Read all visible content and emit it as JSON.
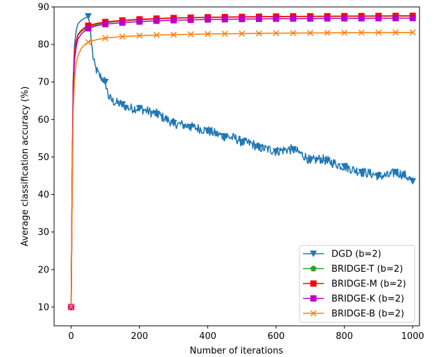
{
  "chart_data": {
    "type": "line",
    "title": "",
    "xlabel": "Number of iterations",
    "ylabel": "Average classification accuracy (%)",
    "xlim": [
      -50,
      1020
    ],
    "ylim": [
      5,
      90
    ],
    "xticks": [
      0,
      200,
      400,
      600,
      800,
      1000
    ],
    "yticks": [
      10,
      20,
      30,
      40,
      50,
      60,
      70,
      80,
      90
    ],
    "grid": false,
    "legend_position": "lower-right",
    "series": [
      {
        "name": "DGD (b=2)",
        "color": "#1f77b4",
        "marker": "triangle-down",
        "x": [
          0,
          3,
          6,
          10,
          15,
          20,
          30,
          40,
          50,
          55,
          60,
          65,
          70,
          80,
          90,
          100,
          110,
          120,
          130,
          150,
          170,
          200,
          230,
          250,
          280,
          300,
          330,
          350,
          380,
          400,
          430,
          450,
          480,
          500,
          530,
          550,
          580,
          600,
          630,
          650,
          680,
          700,
          730,
          750,
          780,
          800,
          830,
          850,
          880,
          900,
          930,
          950,
          980,
          1000
        ],
        "y": [
          10,
          45,
          70,
          80,
          84,
          85.5,
          86.5,
          87,
          87.5,
          85,
          80,
          76,
          74,
          72,
          71,
          70,
          66,
          65,
          64.5,
          64,
          63,
          63,
          62,
          61.5,
          60,
          59,
          58.5,
          58,
          57.5,
          57,
          56,
          55.5,
          55,
          54,
          53.5,
          52.5,
          52,
          51.5,
          52,
          52,
          50.5,
          49,
          49.5,
          49,
          48,
          47.5,
          46.5,
          46,
          45.5,
          45,
          45,
          46,
          45,
          43.5
        ],
        "marker_x": [
          0,
          50,
          100,
          150,
          200,
          250,
          300,
          350,
          400,
          450,
          500,
          550,
          600,
          650,
          700,
          750,
          800,
          850,
          900,
          950,
          1000
        ]
      },
      {
        "name": "BRIDGE-T (b=2)",
        "color": "#2ca02c",
        "marker": "pentagon",
        "x": [
          0,
          3,
          6,
          10,
          15,
          20,
          30,
          40,
          50,
          75,
          100,
          150,
          200,
          250,
          300,
          350,
          400,
          450,
          500,
          550,
          600,
          650,
          700,
          750,
          800,
          850,
          900,
          950,
          1000
        ],
        "y": [
          10,
          45,
          70,
          78,
          81,
          82.5,
          83.5,
          84.2,
          84.7,
          85.3,
          85.8,
          86.3,
          86.6,
          86.8,
          87,
          87.1,
          87.2,
          87.25,
          87.3,
          87.35,
          87.4,
          87.42,
          87.45,
          87.47,
          87.5,
          87.52,
          87.54,
          87.56,
          87.58
        ],
        "marker_x": [
          0,
          50,
          100,
          150,
          200,
          250,
          300,
          350,
          400,
          450,
          500,
          550,
          600,
          650,
          700,
          750,
          800,
          850,
          900,
          950,
          1000
        ]
      },
      {
        "name": "BRIDGE-M (b=2)",
        "color": "#ff0000",
        "marker": "square",
        "x": [
          0,
          3,
          6,
          10,
          15,
          20,
          30,
          40,
          50,
          75,
          100,
          150,
          200,
          250,
          300,
          350,
          400,
          450,
          500,
          550,
          600,
          650,
          700,
          750,
          800,
          850,
          900,
          950,
          1000
        ],
        "y": [
          10,
          45,
          70,
          78,
          81,
          82.7,
          83.8,
          84.5,
          85,
          85.6,
          86,
          86.4,
          86.7,
          86.9,
          87.05,
          87.15,
          87.25,
          87.3,
          87.35,
          87.4,
          87.45,
          87.48,
          87.5,
          87.52,
          87.55,
          87.57,
          87.59,
          87.61,
          87.63
        ],
        "marker_x": [
          0,
          50,
          100,
          150,
          200,
          250,
          300,
          350,
          400,
          450,
          500,
          550,
          600,
          650,
          700,
          750,
          800,
          850,
          900,
          950,
          1000
        ]
      },
      {
        "name": "BRIDGE-K (b=2)",
        "color": "#bf00bf",
        "marker": "square",
        "x": [
          0,
          3,
          6,
          10,
          15,
          20,
          30,
          40,
          50,
          75,
          100,
          150,
          200,
          250,
          300,
          350,
          400,
          450,
          500,
          550,
          600,
          650,
          700,
          750,
          800,
          850,
          900,
          950,
          1000
        ],
        "y": [
          10,
          44,
          68,
          76,
          79.5,
          81.5,
          82.8,
          83.7,
          84.3,
          85,
          85.4,
          85.8,
          86.1,
          86.3,
          86.45,
          86.55,
          86.65,
          86.7,
          86.75,
          86.8,
          86.85,
          86.88,
          86.9,
          86.93,
          86.95,
          86.97,
          86.99,
          87,
          87.02
        ],
        "marker_x": [
          0,
          50,
          100,
          150,
          200,
          250,
          300,
          350,
          400,
          450,
          500,
          550,
          600,
          650,
          700,
          750,
          800,
          850,
          900,
          950,
          1000
        ]
      },
      {
        "name": "BRIDGE-B (b=2)",
        "color": "#ff7f0e",
        "marker": "x",
        "x": [
          0,
          3,
          6,
          10,
          15,
          20,
          30,
          40,
          50,
          75,
          100,
          150,
          200,
          250,
          300,
          350,
          400,
          450,
          500,
          550,
          600,
          650,
          700,
          750,
          800,
          850,
          900,
          950,
          1000
        ],
        "y": [
          10,
          40,
          62,
          71,
          75,
          77,
          79,
          80,
          80.6,
          81.3,
          81.7,
          82.1,
          82.35,
          82.5,
          82.6,
          82.7,
          82.78,
          82.84,
          82.9,
          82.95,
          83,
          83.03,
          83.06,
          83.09,
          83.12,
          83.14,
          83.16,
          83.18,
          83.2
        ],
        "marker_x": [
          0,
          50,
          100,
          150,
          200,
          250,
          300,
          350,
          400,
          450,
          500,
          550,
          600,
          650,
          700,
          750,
          800,
          850,
          900,
          950,
          1000
        ]
      }
    ]
  }
}
